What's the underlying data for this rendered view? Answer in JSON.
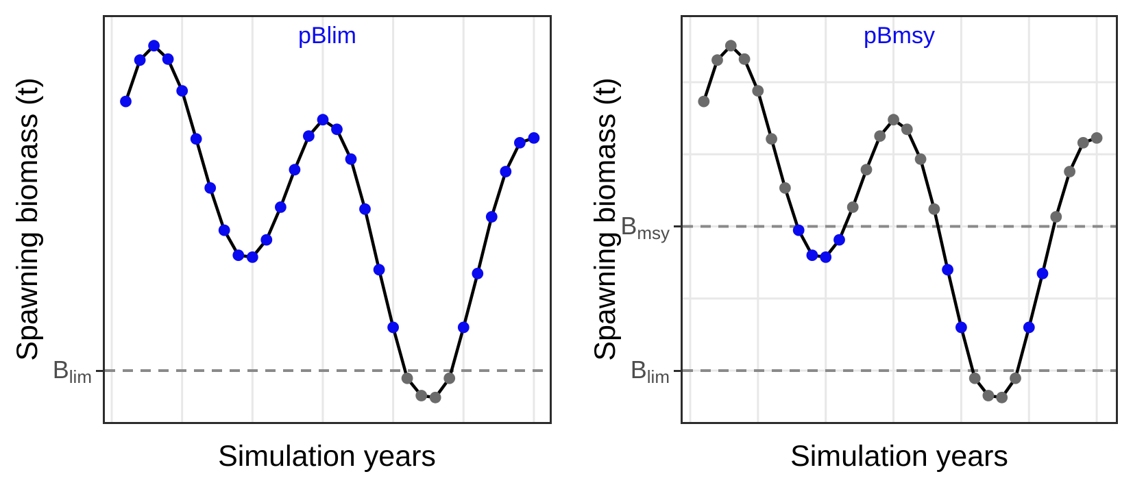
{
  "figure": {
    "ylabel": "Spawning biomass (t)",
    "xlabel": "Simulation years"
  },
  "colors": {
    "blue": "#0a0af0",
    "grey": "#6b6b6b",
    "dashed_line": "#8a8a8a",
    "gridline": "#e8e8e8",
    "panel_border": "#2d2d2d",
    "tick_mark": "#2d2d2d",
    "tick_label": "#4d4d4d",
    "axis_title": "#000000",
    "series_line": "#000000"
  },
  "chart_data": [
    {
      "type": "line",
      "title": "pBlim",
      "xlabel": "Simulation years",
      "ylabel": "Spawning biomass (t)",
      "legend": "none",
      "grid": "vertical-only",
      "x": [
        1,
        2,
        3,
        4,
        5,
        6,
        7,
        8,
        9,
        10,
        11,
        12,
        13,
        14,
        15,
        16,
        17,
        18,
        19,
        20,
        21,
        22,
        23,
        24,
        25,
        26,
        27,
        28,
        29,
        30
      ],
      "y": [
        38.0,
        42.3,
        43.8,
        42.4,
        39.1,
        34.1,
        29.0,
        24.6,
        22.0,
        21.8,
        23.6,
        27.0,
        30.9,
        34.4,
        36.1,
        35.1,
        32.0,
        26.8,
        20.5,
        14.5,
        9.2,
        7.4,
        7.2,
        9.2,
        14.5,
        20.1,
        26.0,
        30.7,
        33.7,
        34.2
      ],
      "point_colors": [
        "blue",
        "blue",
        "blue",
        "blue",
        "blue",
        "blue",
        "blue",
        "blue",
        "blue",
        "blue",
        "blue",
        "blue",
        "blue",
        "blue",
        "blue",
        "blue",
        "blue",
        "blue",
        "blue",
        "blue",
        "grey",
        "grey",
        "grey",
        "grey",
        "blue",
        "blue",
        "blue",
        "blue",
        "blue",
        "blue"
      ],
      "ref_lines": [
        {
          "label_base": "B",
          "label_sub": "lim",
          "value": 10,
          "style": "dashed"
        }
      ],
      "x_gridlines": [
        0,
        5,
        10,
        15,
        20,
        25,
        30
      ],
      "y_gridlines": [],
      "x_tick_labels": [],
      "xlim": [
        -0.6,
        31.3
      ],
      "ylim": [
        4.4,
        47.0
      ]
    },
    {
      "type": "line",
      "title": "pBmsy",
      "xlabel": "Simulation years",
      "ylabel": "Spawning biomass (t)",
      "legend": "none",
      "grid": "both",
      "x": [
        1,
        2,
        3,
        4,
        5,
        6,
        7,
        8,
        9,
        10,
        11,
        12,
        13,
        14,
        15,
        16,
        17,
        18,
        19,
        20,
        21,
        22,
        23,
        24,
        25,
        26,
        27,
        28,
        29,
        30
      ],
      "y": [
        38.0,
        42.3,
        43.8,
        42.4,
        39.1,
        34.1,
        29.0,
        24.6,
        22.0,
        21.8,
        23.6,
        27.0,
        30.9,
        34.4,
        36.1,
        35.1,
        32.0,
        26.8,
        20.5,
        14.5,
        9.2,
        7.4,
        7.2,
        9.2,
        14.5,
        20.1,
        26.0,
        30.7,
        33.7,
        34.2
      ],
      "point_colors": [
        "grey",
        "grey",
        "grey",
        "grey",
        "grey",
        "grey",
        "grey",
        "blue",
        "blue",
        "blue",
        "blue",
        "grey",
        "grey",
        "grey",
        "grey",
        "grey",
        "grey",
        "grey",
        "blue",
        "blue",
        "grey",
        "grey",
        "grey",
        "grey",
        "blue",
        "blue",
        "grey",
        "grey",
        "grey",
        "grey"
      ],
      "ref_lines": [
        {
          "label_base": "B",
          "label_sub": "msy",
          "value": 25,
          "style": "dashed"
        },
        {
          "label_base": "B",
          "label_sub": "lim",
          "value": 10,
          "style": "dashed"
        }
      ],
      "x_gridlines": [
        0,
        5,
        10,
        15,
        20,
        25,
        30
      ],
      "y_gridlines": [
        10,
        17.5,
        25,
        32.5,
        40
      ],
      "x_tick_labels": [],
      "xlim": [
        -0.7,
        31.6
      ],
      "ylim": [
        4.4,
        47.0
      ]
    }
  ]
}
